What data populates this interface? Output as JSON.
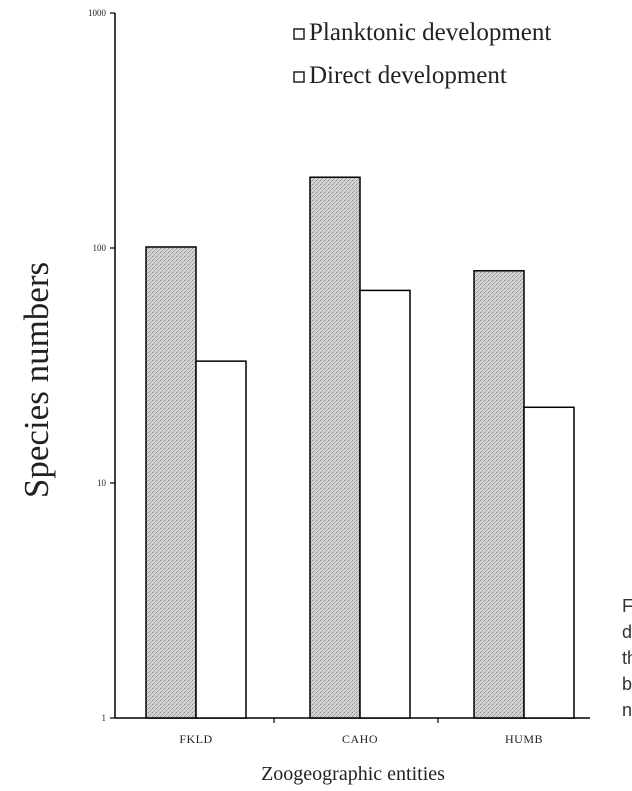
{
  "chart_data": {
    "type": "bar",
    "categories": [
      "FKLD",
      "CAHO",
      "HUMB"
    ],
    "series": [
      {
        "name": "Planktonic development",
        "values": [
          101,
          200,
          80
        ],
        "color": "#c8c8c8",
        "pattern": "stippled"
      },
      {
        "name": "Direct development",
        "values": [
          33,
          66,
          21
        ],
        "color": "#ffffff"
      }
    ],
    "ylabel": "Species numbers",
    "xlabel": "Zoogeographic entities",
    "yscale": "log",
    "ylim": [
      1,
      1000
    ],
    "yticks": [
      {
        "value": 1,
        "label": "1"
      },
      {
        "value": 10,
        "label": "10"
      },
      {
        "value": 100,
        "label": "100"
      },
      {
        "value": 1000,
        "label": "1000"
      }
    ],
    "legend": {
      "position": "top-right"
    },
    "grid": false
  },
  "side_text_fragment": [
    "F",
    "d",
    "th",
    "b",
    "n"
  ]
}
